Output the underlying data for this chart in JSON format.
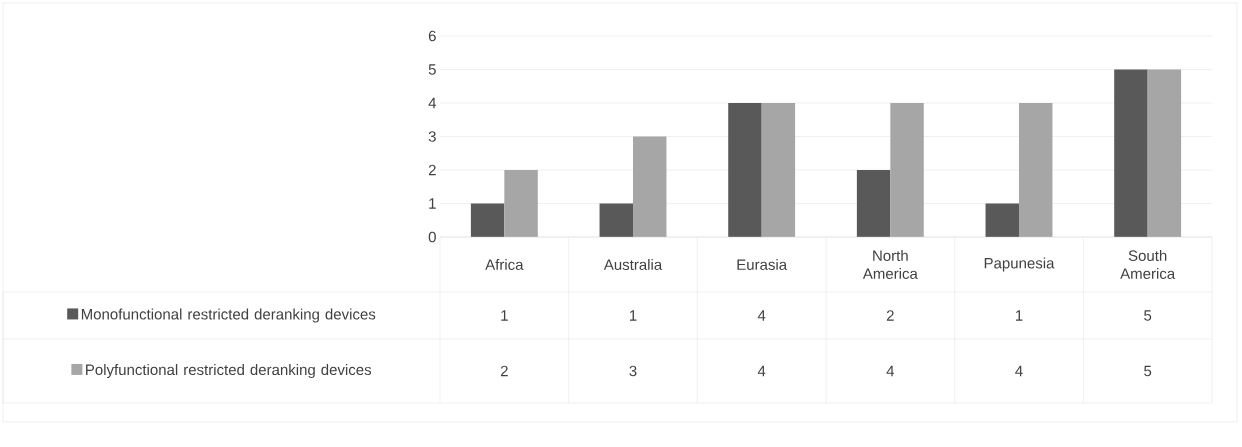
{
  "chart_data": {
    "type": "bar",
    "categories": [
      "Africa",
      "Australia",
      "Eurasia",
      "North America",
      "Papunesia",
      "South America"
    ],
    "series": [
      {
        "name": "Monofunctional restricted deranking devices",
        "color": "#595959",
        "values": [
          1,
          1,
          4,
          2,
          1,
          5
        ]
      },
      {
        "name": "Polyfunctional restricted deranking devices",
        "color": "#a6a6a6",
        "values": [
          2,
          3,
          4,
          4,
          4,
          5
        ]
      }
    ],
    "ylim": [
      0,
      6
    ],
    "yticks": [
      0,
      1,
      2,
      3,
      4,
      5,
      6
    ],
    "grid": "y",
    "legend": "bottom",
    "data_labels": true
  }
}
